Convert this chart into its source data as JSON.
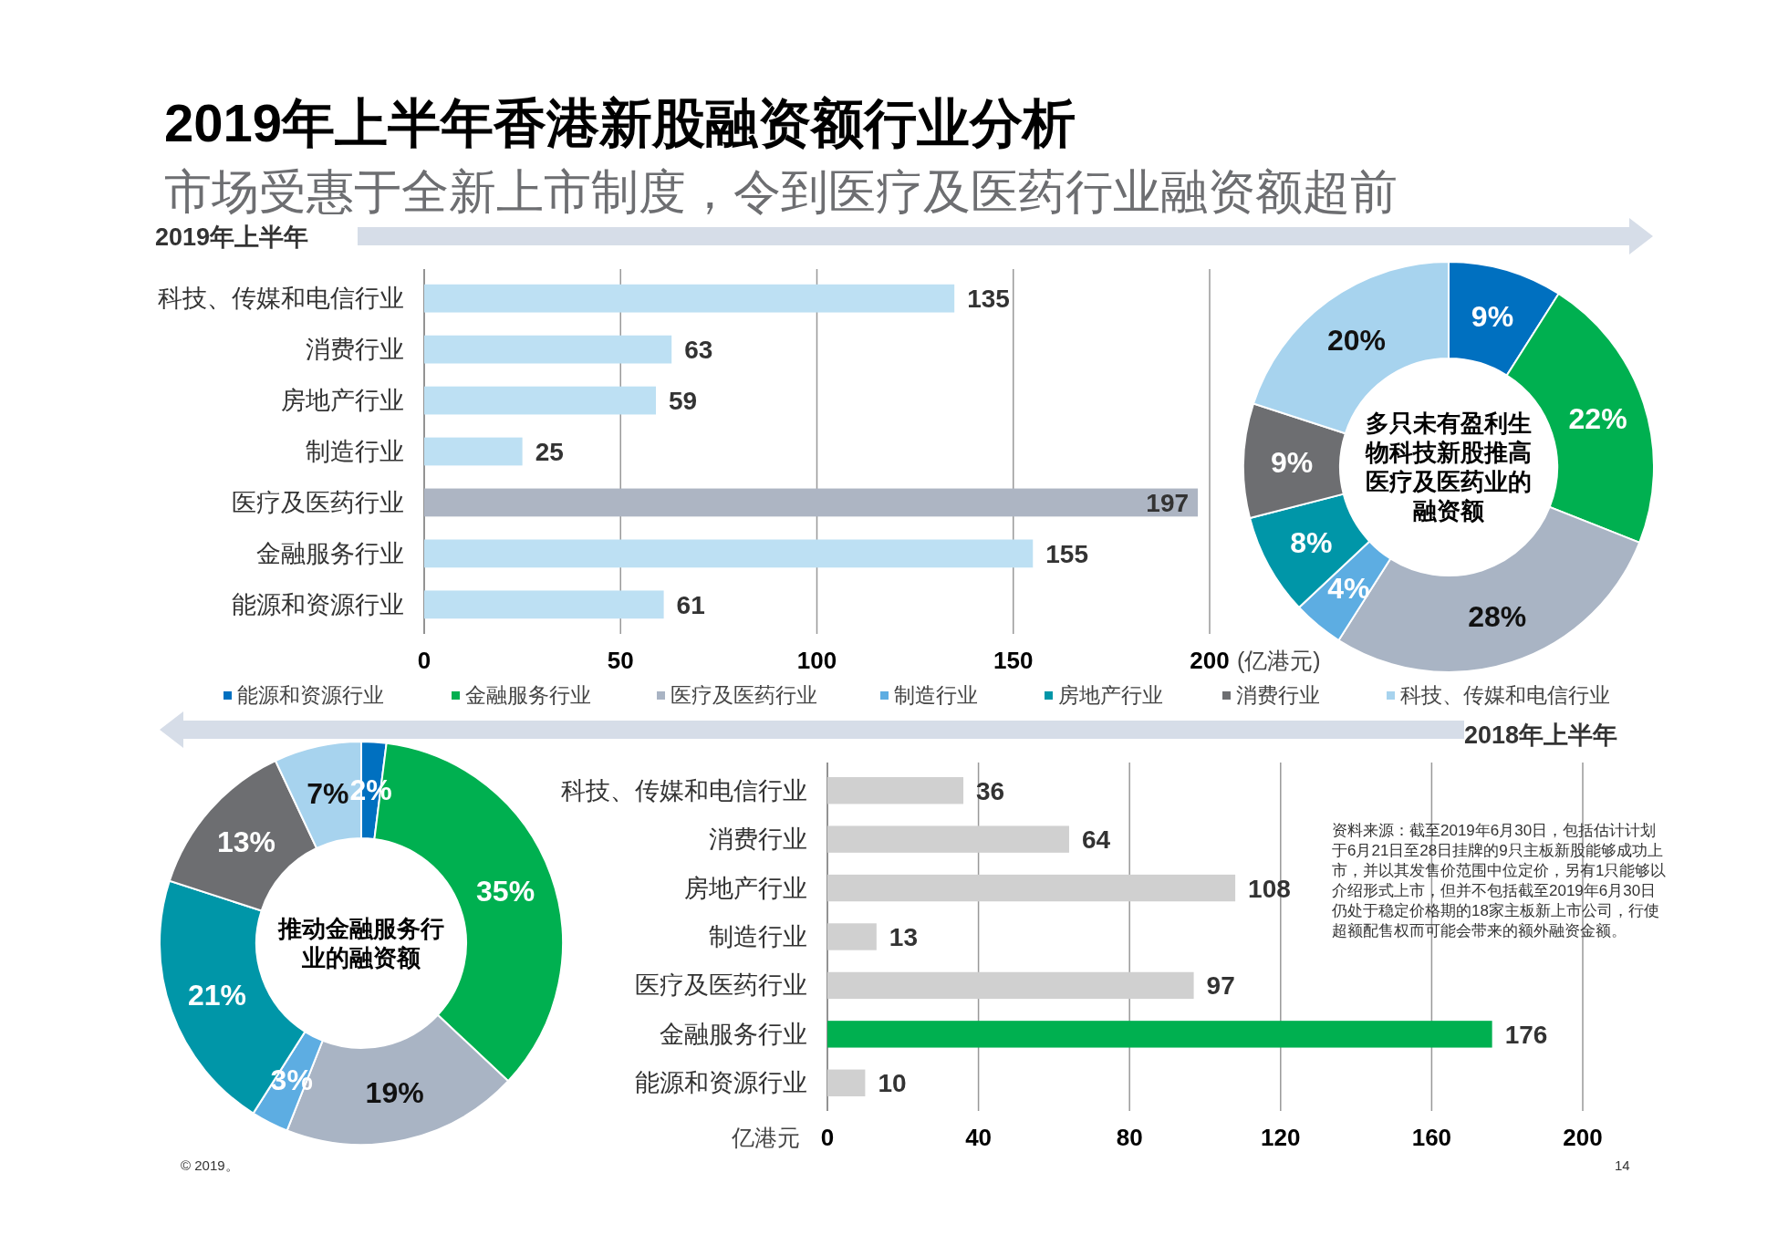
{
  "chart_data": [
    {
      "type": "bar",
      "orientation": "horizontal",
      "title": "2019年上半年香港新股融资额行业分析",
      "subtitle": "市场受惠于全新上市制度，令到医疗及医药行业融资额超前",
      "x2label": "2019年上半年",
      "xlabel": "(亿港元)",
      "categories": [
        "科技、传媒和电信行业",
        "消费行业",
        "房地产行业",
        "制造行业",
        "医疗及医药行业",
        "金融服务行业",
        "能源和资源行业"
      ],
      "values": [
        135,
        63,
        59,
        25,
        197,
        155,
        61
      ],
      "colors": [
        "#bde0f3",
        "#bde0f3",
        "#bde0f3",
        "#bde0f3",
        "#adb5c3",
        "#bde0f3",
        "#bde0f3"
      ],
      "xlim": [
        0,
        200
      ],
      "xticks": [
        0,
        50,
        100,
        150,
        200
      ],
      "grid": "x",
      "data_labels": true
    },
    {
      "type": "donut",
      "annotations": [
        "多只未有盈利生物科技新股推高医疗及医药业的融资额"
      ],
      "legend": "bottom",
      "categories": [
        "能源和资源行业",
        "金融服务行业",
        "医疗及医药行业",
        "制造行业",
        "房地产行业",
        "消费行业",
        "科技、传媒和电信行业"
      ],
      "values": [
        9,
        22,
        28,
        4,
        8,
        9,
        20
      ],
      "colors": [
        "#0070c0",
        "#00b050",
        "#a9b4c4",
        "#5dade2",
        "#0096a8",
        "#6d6e71",
        "#a7d3ee"
      ],
      "value_labels": [
        "9%",
        "22%",
        "28%",
        "4%",
        "8%",
        "9%",
        "20%"
      ]
    },
    {
      "type": "bar",
      "orientation": "horizontal",
      "x2label": "2018年上半年",
      "xlabel": "亿港元",
      "annotations": [
        "资料来源：截至2019年6月30日，包括估计计划于6月21日至28日挂牌的9只主板新股能够成功上市，并以其发售价范围中位定价，另有1只能够以介绍形式上市，但并不包括截至2019年6月30日仍处于稳定价格期的18家主板新上市公司，行使超额配售权而可能会带来的额外融资金额。",
        "© 2019。",
        "14"
      ],
      "categories": [
        "科技、传媒和电信行业",
        "消费行业",
        "房地产行业",
        "制造行业",
        "医疗及医药行业",
        "金融服务行业",
        "能源和资源行业"
      ],
      "values": [
        36,
        64,
        108,
        13,
        97,
        176,
        10
      ],
      "colors": [
        "#d0d0d0",
        "#d0d0d0",
        "#d0d0d0",
        "#d0d0d0",
        "#d0d0d0",
        "#00b050",
        "#d0d0d0"
      ],
      "xlim": [
        0,
        200
      ],
      "xticks": [
        0,
        40,
        80,
        120,
        160,
        200
      ],
      "grid": "x",
      "data_labels": true
    },
    {
      "type": "donut",
      "annotations": [
        "推动金融服务行业的融资额"
      ],
      "categories": [
        null,
        null,
        null,
        null,
        null,
        null,
        null
      ],
      "values": [
        2,
        35,
        19,
        3,
        21,
        13,
        7
      ],
      "colors": [
        "#0070c0",
        "#00b050",
        "#a9b4c4",
        "#5dade2",
        "#0096a8",
        "#6d6e71",
        "#a7d3ee"
      ],
      "value_labels": [
        "2%",
        "35%",
        "19%",
        "3%",
        "21%",
        "13%",
        "7%"
      ]
    }
  ]
}
